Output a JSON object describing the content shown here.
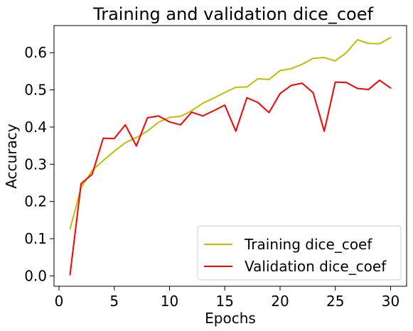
{
  "chart_data": {
    "type": "line",
    "title": "Training and validation dice_coef",
    "xlabel": "Epochs",
    "ylabel": "Accuracy",
    "xlim": [
      -0.45,
      31.45
    ],
    "ylim": [
      -0.028,
      0.673
    ],
    "xticks": [
      0,
      5,
      10,
      15,
      20,
      25,
      30
    ],
    "yticks": [
      0.0,
      0.1,
      0.2,
      0.3,
      0.4,
      0.5,
      0.6
    ],
    "grid": false,
    "legend_position": "bottom-right",
    "x": [
      1,
      2,
      3,
      4,
      5,
      6,
      7,
      8,
      9,
      10,
      11,
      12,
      13,
      14,
      15,
      16,
      17,
      18,
      19,
      20,
      21,
      22,
      23,
      24,
      25,
      26,
      27,
      28,
      29,
      30
    ],
    "series": [
      {
        "name": "Training dice_coef",
        "color": "#bfbf00",
        "values": [
          0.126,
          0.237,
          0.283,
          0.31,
          0.335,
          0.358,
          0.372,
          0.389,
          0.413,
          0.426,
          0.429,
          0.444,
          0.464,
          0.478,
          0.493,
          0.507,
          0.508,
          0.53,
          0.528,
          0.552,
          0.557,
          0.569,
          0.585,
          0.587,
          0.578,
          0.6,
          0.635,
          0.625,
          0.624,
          0.641
        ]
      },
      {
        "name": "Validation dice_coef",
        "color": "#ff0000",
        "values": [
          0.003,
          0.248,
          0.273,
          0.37,
          0.369,
          0.406,
          0.349,
          0.425,
          0.43,
          0.414,
          0.406,
          0.44,
          0.43,
          0.444,
          0.459,
          0.389,
          0.479,
          0.466,
          0.439,
          0.49,
          0.512,
          0.518,
          0.492,
          0.389,
          0.521,
          0.52,
          0.504,
          0.501,
          0.526,
          0.505
        ]
      }
    ]
  }
}
